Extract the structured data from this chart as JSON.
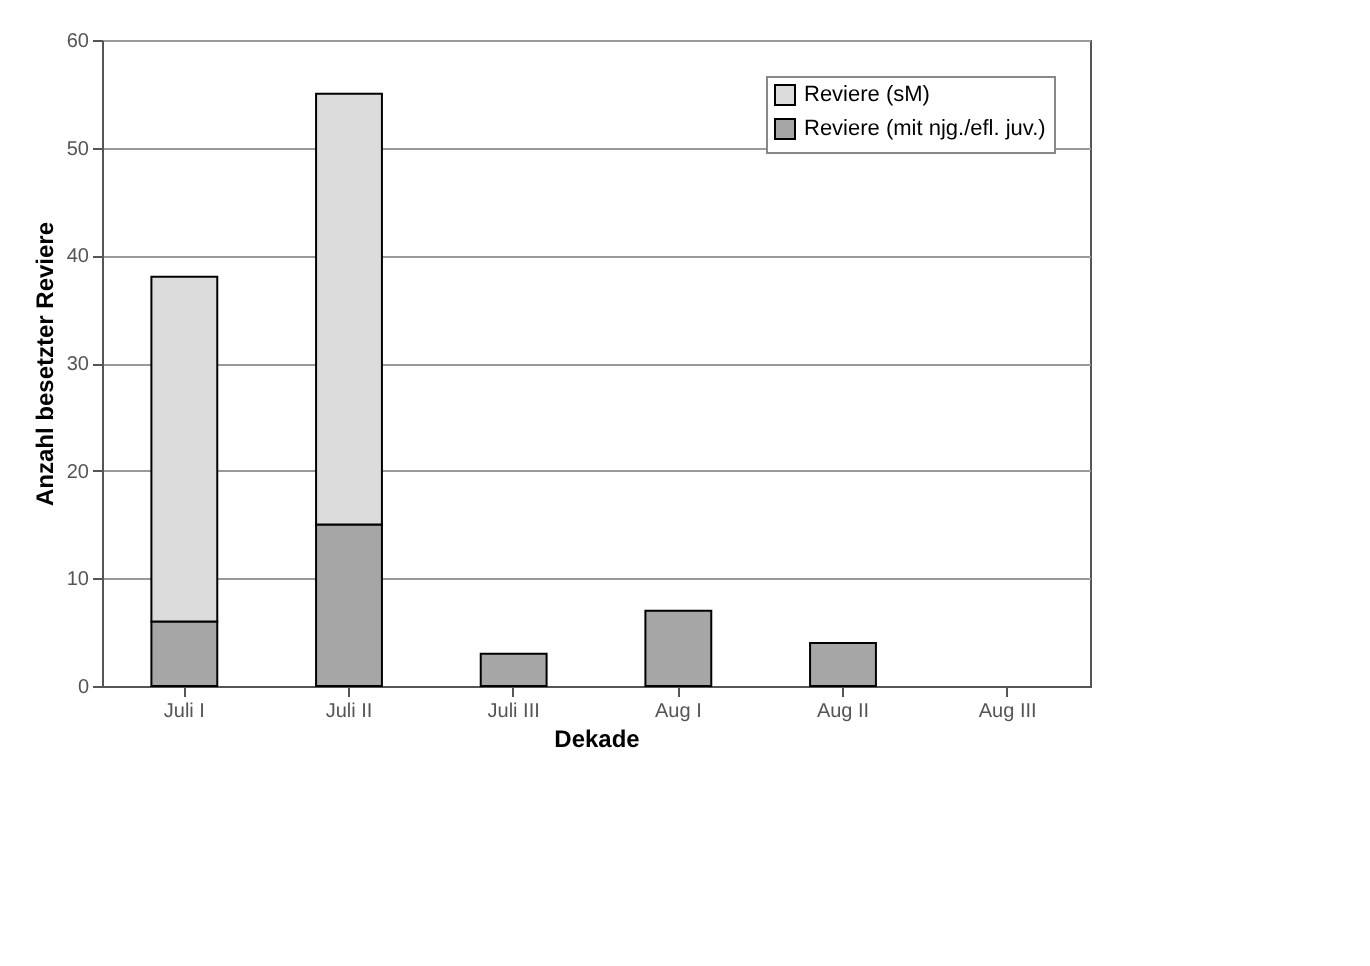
{
  "chart_data": {
    "type": "bar",
    "stacked": true,
    "xlabel": "Dekade",
    "ylabel": "Anzahl besetzter Reviere",
    "categories": [
      "Juli I",
      "Juli II",
      "Juli III",
      "Aug I",
      "Aug II",
      "Aug III"
    ],
    "series": [
      {
        "name": "Reviere (mit njg./efl. juv.)",
        "color": "#a6a6a6",
        "values": [
          6,
          15,
          3,
          7,
          4,
          0
        ]
      },
      {
        "name": "Reviere (sM)",
        "color": "#dcdcdc",
        "values": [
          32,
          40,
          0,
          0,
          0,
          0
        ]
      }
    ],
    "ylim": [
      0,
      60
    ],
    "yticks": [
      0,
      10,
      20,
      30,
      40,
      50,
      60
    ],
    "grid": "y",
    "legend": "top right"
  }
}
